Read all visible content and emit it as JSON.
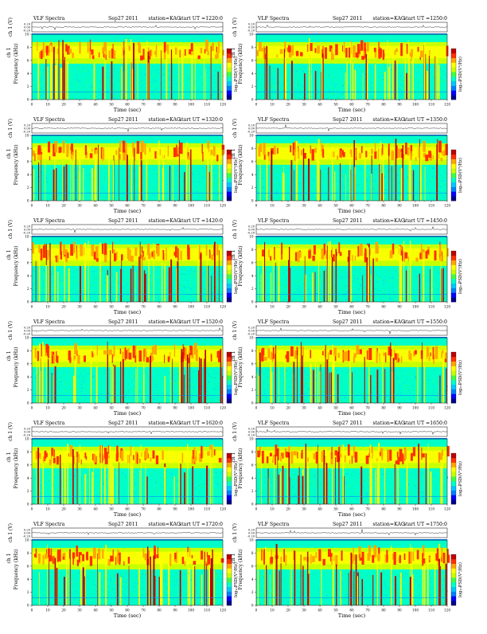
{
  "panel_header": {
    "label": "VLF Spectra",
    "date": "Sep27 2011",
    "station": "station=KAG",
    "start_prefix": "start  UT  ="
  },
  "labels": {
    "ch_axis": "ch 1 (V)",
    "freq_axis_top": "ch 1",
    "freq_axis": "Frequency  (kHz)",
    "time_axis": "Time  (sec)",
    "colorbar": "log₁₀PSD(V²/Hz)"
  },
  "colors": {
    "scale": [
      "#00008b",
      "#0000ff",
      "#0080ff",
      "#00c8ff",
      "#00ffc8",
      "#40ff40",
      "#c8ff00",
      "#ffff00",
      "#ffa500",
      "#ff3000",
      "#c00000"
    ]
  },
  "chart_data": [
    {
      "type": "heatmap",
      "start_ut": "1220:0",
      "xlabel": "Time  (sec)",
      "ylabel": "Frequency  (kHz)",
      "xlim": [
        0,
        120
      ],
      "ylim": [
        0,
        10
      ],
      "x_ticks": [
        0,
        10,
        20,
        30,
        40,
        50,
        60,
        70,
        80,
        90,
        100,
        110,
        120
      ],
      "y_ticks": [
        0,
        2,
        4,
        6,
        8,
        10
      ],
      "waveform_ticks": [
        "0.20",
        "0.00",
        "-0.20"
      ]
    },
    {
      "type": "heatmap",
      "start_ut": "1250:0",
      "xlabel": "Time  (sec)",
      "ylabel": "Frequency  (kHz)",
      "xlim": [
        0,
        120
      ],
      "ylim": [
        0,
        10
      ],
      "x_ticks": [
        0,
        10,
        20,
        30,
        40,
        50,
        60,
        70,
        80,
        90,
        100,
        110,
        120
      ],
      "y_ticks": [
        0,
        2,
        4,
        6,
        8,
        10
      ],
      "waveform_ticks": [
        "0.20",
        "0.00",
        "-0.20"
      ]
    },
    {
      "type": "heatmap",
      "start_ut": "1320:0",
      "xlabel": "Time  (sec)",
      "ylabel": "Frequency  (kHz)",
      "xlim": [
        0,
        120
      ],
      "ylim": [
        0,
        10
      ],
      "x_ticks": [
        0,
        10,
        20,
        30,
        40,
        50,
        60,
        70,
        80,
        90,
        100,
        110,
        120
      ],
      "y_ticks": [
        0,
        2,
        4,
        6,
        8,
        10
      ],
      "waveform_ticks": [
        "0.20",
        "0.00",
        "-0.20"
      ]
    },
    {
      "type": "heatmap",
      "start_ut": "1350:0",
      "xlabel": "Time  (sec)",
      "ylabel": "Frequency  (kHz)",
      "xlim": [
        0,
        120
      ],
      "ylim": [
        0,
        10
      ],
      "x_ticks": [
        0,
        10,
        20,
        30,
        40,
        50,
        60,
        70,
        80,
        90,
        100,
        110,
        120
      ],
      "y_ticks": [
        0,
        2,
        4,
        6,
        8,
        10
      ],
      "waveform_ticks": [
        "0.20",
        "0.00",
        "-0.20"
      ]
    },
    {
      "type": "heatmap",
      "start_ut": "1420:0",
      "xlabel": "Time  (sec)",
      "ylabel": "Frequency  (kHz)",
      "xlim": [
        0,
        120
      ],
      "ylim": [
        0,
        10
      ],
      "x_ticks": [
        0,
        10,
        20,
        30,
        40,
        50,
        60,
        70,
        80,
        90,
        100,
        110,
        120
      ],
      "y_ticks": [
        0,
        2,
        4,
        6,
        8,
        10
      ],
      "waveform_ticks": [
        "0.20",
        "0.00",
        "-0.20"
      ]
    },
    {
      "type": "heatmap",
      "start_ut": "1450:0",
      "xlabel": "Time  (sec)",
      "ylabel": "Frequency  (kHz)",
      "xlim": [
        0,
        120
      ],
      "ylim": [
        0,
        10
      ],
      "x_ticks": [
        0,
        10,
        20,
        30,
        40,
        50,
        60,
        70,
        80,
        90,
        100,
        110,
        120
      ],
      "y_ticks": [
        0,
        2,
        4,
        6,
        8,
        10
      ],
      "waveform_ticks": [
        "0.20",
        "0.00",
        "-0.20"
      ]
    },
    {
      "type": "heatmap",
      "start_ut": "1520:0",
      "xlabel": "Time  (sec)",
      "ylabel": "Frequency  (kHz)",
      "xlim": [
        0,
        120
      ],
      "ylim": [
        0,
        10
      ],
      "x_ticks": [
        0,
        10,
        20,
        30,
        40,
        50,
        60,
        70,
        80,
        90,
        100,
        110,
        120
      ],
      "y_ticks": [
        0,
        2,
        4,
        6,
        8,
        10
      ],
      "waveform_ticks": [
        "0.20",
        "0.00",
        "-0.20"
      ]
    },
    {
      "type": "heatmap",
      "start_ut": "1550:0",
      "xlabel": "Time  (sec)",
      "ylabel": "Frequency  (kHz)",
      "xlim": [
        0,
        120
      ],
      "ylim": [
        0,
        10
      ],
      "x_ticks": [
        0,
        10,
        20,
        30,
        40,
        50,
        60,
        70,
        80,
        90,
        100,
        110,
        120
      ],
      "y_ticks": [
        0,
        2,
        4,
        6,
        8,
        10
      ],
      "waveform_ticks": [
        "0.20",
        "0.00",
        "-0.20"
      ]
    },
    {
      "type": "heatmap",
      "start_ut": "1620:0",
      "xlabel": "Time  (sec)",
      "ylabel": "Frequency  (kHz)",
      "xlim": [
        0,
        120
      ],
      "ylim": [
        0,
        10
      ],
      "x_ticks": [
        0,
        10,
        20,
        30,
        40,
        50,
        60,
        70,
        80,
        90,
        100,
        110,
        120
      ],
      "y_ticks": [
        0,
        2,
        4,
        6,
        8,
        10
      ],
      "waveform_ticks": [
        "0.20",
        "0.00",
        "-0.20"
      ]
    },
    {
      "type": "heatmap",
      "start_ut": "1650:0",
      "xlabel": "Time  (sec)",
      "ylabel": "Frequency  (kHz)",
      "xlim": [
        0,
        120
      ],
      "ylim": [
        0,
        10
      ],
      "x_ticks": [
        0,
        10,
        20,
        30,
        40,
        50,
        60,
        70,
        80,
        90,
        100,
        110,
        120
      ],
      "y_ticks": [
        0,
        2,
        4,
        6,
        8,
        10
      ],
      "waveform_ticks": [
        "0.20",
        "0.00",
        "-0.20"
      ]
    },
    {
      "type": "heatmap",
      "start_ut": "1720:0",
      "xlabel": "Time  (sec)",
      "ylabel": "Frequency  (kHz)",
      "xlim": [
        0,
        120
      ],
      "ylim": [
        0,
        10
      ],
      "x_ticks": [
        0,
        10,
        20,
        30,
        40,
        50,
        60,
        70,
        80,
        90,
        100,
        110,
        120
      ],
      "y_ticks": [
        0,
        2,
        4,
        6,
        8,
        10
      ],
      "waveform_ticks": [
        "0.20",
        "0.00",
        "-0.20"
      ]
    },
    {
      "type": "heatmap",
      "start_ut": "1750:0",
      "xlabel": "Time  (sec)",
      "ylabel": "Frequency  (kHz)",
      "xlim": [
        0,
        120
      ],
      "ylim": [
        0,
        10
      ],
      "x_ticks": [
        0,
        10,
        20,
        30,
        40,
        50,
        60,
        70,
        80,
        90,
        100,
        110,
        120
      ],
      "y_ticks": [
        0,
        2,
        4,
        6,
        8,
        10
      ],
      "waveform_ticks": [
        "0.20",
        "0.00",
        "-0.20"
      ]
    }
  ]
}
